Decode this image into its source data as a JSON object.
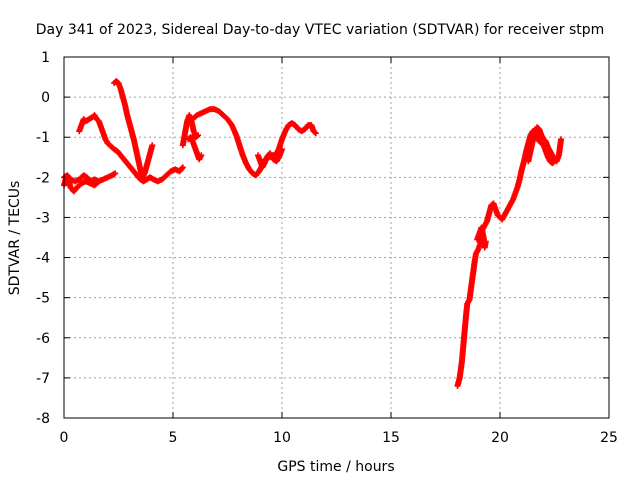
{
  "chart_data": {
    "type": "scatter",
    "title": "Day 341 of 2023, Sidereal Day-to-day VTEC variation (SDTVAR) for receiver stpm",
    "xlabel": "GPS time / hours",
    "ylabel": "SDTVAR / TECUs",
    "xlim": [
      0,
      25
    ],
    "ylim": [
      -8,
      1
    ],
    "xticks": [
      0,
      5,
      10,
      15,
      20,
      25
    ],
    "yticks": [
      -8,
      -7,
      -6,
      -5,
      -4,
      -3,
      -2,
      -1,
      0,
      1
    ],
    "grid": true,
    "marker": "plus",
    "color": "#ff0000",
    "series": [
      {
        "segments": [
          [
            [
              0.0,
              -2.2
            ],
            [
              0.1,
              -2.0
            ],
            [
              0.2,
              -2.05
            ],
            [
              0.3,
              -2.25
            ],
            [
              0.45,
              -2.35
            ],
            [
              0.6,
              -2.25
            ],
            [
              0.8,
              -2.15
            ],
            [
              1.0,
              -2.1
            ],
            [
              1.2,
              -2.15
            ],
            [
              1.4,
              -2.2
            ],
            [
              1.6,
              -2.1
            ],
            [
              1.8,
              -2.05
            ],
            [
              2.0,
              -2.0
            ],
            [
              2.2,
              -1.95
            ],
            [
              2.35,
              -1.9
            ]
          ],
          [
            [
              0.0,
              -2.0
            ],
            [
              0.15,
              -1.95
            ],
            [
              0.3,
              -2.05
            ],
            [
              0.5,
              -2.1
            ],
            [
              0.7,
              -2.05
            ],
            [
              0.9,
              -1.95
            ],
            [
              1.05,
              -2.0
            ],
            [
              1.2,
              -2.1
            ],
            [
              1.4,
              -2.05
            ],
            [
              1.6,
              -2.1
            ]
          ],
          [
            [
              0.7,
              -0.85
            ],
            [
              0.8,
              -0.7
            ],
            [
              0.9,
              -0.55
            ],
            [
              1.0,
              -0.6
            ],
            [
              1.15,
              -0.55
            ],
            [
              1.3,
              -0.5
            ],
            [
              1.4,
              -0.45
            ],
            [
              1.5,
              -0.55
            ],
            [
              1.6,
              -0.6
            ],
            [
              1.7,
              -0.75
            ],
            [
              1.8,
              -0.9
            ],
            [
              1.9,
              -1.05
            ],
            [
              2.0,
              -1.15
            ],
            [
              2.1,
              -1.2
            ],
            [
              2.2,
              -1.25
            ],
            [
              2.3,
              -1.3
            ],
            [
              2.45,
              -1.35
            ],
            [
              2.6,
              -1.45
            ],
            [
              2.75,
              -1.55
            ],
            [
              2.9,
              -1.65
            ],
            [
              3.05,
              -1.75
            ],
            [
              3.2,
              -1.85
            ],
            [
              3.35,
              -1.95
            ],
            [
              3.5,
              -2.05
            ],
            [
              3.65,
              -2.1
            ],
            [
              3.8,
              -2.05
            ],
            [
              3.95,
              -2.0
            ],
            [
              4.1,
              -2.05
            ],
            [
              4.3,
              -2.1
            ],
            [
              4.5,
              -2.05
            ],
            [
              4.7,
              -1.95
            ],
            [
              4.9,
              -1.85
            ],
            [
              5.1,
              -1.8
            ],
            [
              5.3,
              -1.85
            ],
            [
              5.45,
              -1.75
            ]
          ],
          [
            [
              2.3,
              0.35
            ],
            [
              2.4,
              0.4
            ],
            [
              2.5,
              0.35
            ],
            [
              2.6,
              0.2
            ],
            [
              2.7,
              0.0
            ],
            [
              2.8,
              -0.2
            ],
            [
              2.9,
              -0.45
            ],
            [
              3.0,
              -0.65
            ],
            [
              3.1,
              -0.85
            ],
            [
              3.2,
              -1.05
            ],
            [
              3.3,
              -1.3
            ],
            [
              3.4,
              -1.55
            ],
            [
              3.5,
              -1.8
            ],
            [
              3.6,
              -2.0
            ],
            [
              3.7,
              -1.9
            ],
            [
              3.8,
              -1.7
            ],
            [
              3.9,
              -1.5
            ],
            [
              4.0,
              -1.3
            ],
            [
              4.05,
              -1.2
            ]
          ],
          [
            [
              5.45,
              -1.2
            ],
            [
              5.55,
              -0.9
            ],
            [
              5.65,
              -0.6
            ],
            [
              5.75,
              -0.45
            ],
            [
              5.85,
              -0.6
            ],
            [
              5.95,
              -0.85
            ],
            [
              6.05,
              -1.0
            ],
            [
              6.15,
              -0.95
            ],
            [
              5.7,
              -1.05
            ],
            [
              5.8,
              -1.0
            ],
            [
              5.9,
              -1.1
            ],
            [
              6.0,
              -1.25
            ],
            [
              6.1,
              -1.4
            ],
            [
              6.2,
              -1.55
            ],
            [
              6.3,
              -1.45
            ]
          ],
          [
            [
              5.9,
              -0.55
            ],
            [
              6.1,
              -0.45
            ],
            [
              6.3,
              -0.4
            ],
            [
              6.5,
              -0.35
            ],
            [
              6.7,
              -0.3
            ],
            [
              6.9,
              -0.3
            ],
            [
              7.1,
              -0.35
            ],
            [
              7.3,
              -0.45
            ],
            [
              7.5,
              -0.55
            ],
            [
              7.7,
              -0.7
            ],
            [
              7.9,
              -0.95
            ],
            [
              8.05,
              -1.2
            ],
            [
              8.2,
              -1.45
            ],
            [
              8.35,
              -1.65
            ],
            [
              8.5,
              -1.8
            ],
            [
              8.65,
              -1.9
            ],
            [
              8.8,
              -1.95
            ],
            [
              8.95,
              -1.85
            ],
            [
              9.1,
              -1.7
            ],
            [
              9.25,
              -1.55
            ],
            [
              9.4,
              -1.5
            ],
            [
              9.55,
              -1.45
            ],
            [
              9.7,
              -1.45
            ],
            [
              9.85,
              -1.3
            ],
            [
              10.0,
              -1.05
            ],
            [
              10.15,
              -0.85
            ],
            [
              10.3,
              -0.7
            ],
            [
              10.45,
              -0.65
            ],
            [
              10.6,
              -0.7
            ],
            [
              10.75,
              -0.8
            ],
            [
              10.9,
              -0.85
            ],
            [
              11.05,
              -0.8
            ],
            [
              11.2,
              -0.7
            ],
            [
              11.35,
              -0.7
            ],
            [
              11.45,
              -0.85
            ],
            [
              11.55,
              -0.9
            ]
          ],
          [
            [
              8.9,
              -1.45
            ],
            [
              9.0,
              -1.6
            ],
            [
              9.1,
              -1.75
            ],
            [
              9.2,
              -1.65
            ],
            [
              9.3,
              -1.5
            ],
            [
              9.45,
              -1.4
            ],
            [
              9.6,
              -1.55
            ],
            [
              9.75,
              -1.6
            ],
            [
              9.9,
              -1.45
            ],
            [
              10.0,
              -1.3
            ]
          ],
          [
            [
              18.05,
              -7.2
            ],
            [
              18.15,
              -7.0
            ],
            [
              18.2,
              -6.8
            ],
            [
              18.25,
              -6.6
            ],
            [
              18.3,
              -6.3
            ],
            [
              18.35,
              -6.0
            ],
            [
              18.4,
              -5.7
            ],
            [
              18.45,
              -5.4
            ],
            [
              18.5,
              -5.15
            ],
            [
              18.6,
              -5.05
            ],
            [
              18.65,
              -4.85
            ],
            [
              18.7,
              -4.65
            ],
            [
              18.75,
              -4.45
            ],
            [
              18.8,
              -4.25
            ],
            [
              18.85,
              -4.05
            ],
            [
              18.9,
              -3.9
            ],
            [
              19.0,
              -3.8
            ],
            [
              19.1,
              -3.65
            ],
            [
              19.15,
              -3.45
            ],
            [
              19.2,
              -3.3
            ],
            [
              19.3,
              -3.2
            ],
            [
              19.4,
              -3.1
            ],
            [
              19.5,
              -2.9
            ],
            [
              19.6,
              -2.7
            ],
            [
              19.7,
              -2.65
            ],
            [
              19.8,
              -2.8
            ],
            [
              19.9,
              -2.95
            ],
            [
              20.0,
              -3.0
            ],
            [
              20.1,
              -3.05
            ],
            [
              20.2,
              -2.95
            ],
            [
              20.3,
              -2.85
            ],
            [
              20.4,
              -2.75
            ],
            [
              20.5,
              -2.65
            ],
            [
              20.6,
              -2.55
            ],
            [
              20.7,
              -2.4
            ],
            [
              20.8,
              -2.25
            ],
            [
              20.9,
              -2.05
            ],
            [
              21.0,
              -1.8
            ],
            [
              21.1,
              -1.6
            ],
            [
              21.2,
              -1.35
            ],
            [
              21.3,
              -1.15
            ],
            [
              21.4,
              -0.95
            ],
            [
              21.5,
              -0.85
            ],
            [
              21.6,
              -0.9
            ],
            [
              21.7,
              -1.0
            ],
            [
              21.8,
              -1.1
            ],
            [
              21.9,
              -1.15
            ],
            [
              22.0,
              -1.2
            ],
            [
              22.1,
              -1.35
            ],
            [
              22.2,
              -1.5
            ],
            [
              22.3,
              -1.6
            ],
            [
              22.4,
              -1.65
            ],
            [
              22.5,
              -1.6
            ]
          ],
          [
            [
              18.95,
              -3.55
            ],
            [
              19.05,
              -3.4
            ],
            [
              19.15,
              -3.25
            ],
            [
              19.25,
              -3.5
            ],
            [
              19.3,
              -3.75
            ],
            [
              19.35,
              -3.6
            ]
          ],
          [
            [
              21.3,
              -1.6
            ],
            [
              21.4,
              -1.35
            ],
            [
              21.5,
              -1.1
            ],
            [
              21.6,
              -0.9
            ],
            [
              21.7,
              -0.75
            ],
            [
              21.8,
              -0.8
            ],
            [
              21.9,
              -0.95
            ],
            [
              22.0,
              -1.05
            ],
            [
              22.1,
              -1.1
            ],
            [
              22.2,
              -1.25
            ],
            [
              22.3,
              -1.35
            ],
            [
              22.4,
              -1.45
            ],
            [
              22.5,
              -1.55
            ],
            [
              22.6,
              -1.6
            ],
            [
              22.7,
              -1.45
            ],
            [
              22.75,
              -1.25
            ],
            [
              22.8,
              -1.05
            ]
          ]
        ]
      }
    ]
  }
}
